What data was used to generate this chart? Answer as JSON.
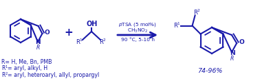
{
  "bg_color": "#ffffff",
  "blue": "#1a1aaa",
  "fig_width": 3.78,
  "fig_height": 1.21,
  "dpi": 100,
  "reaction_line1": "$p$TSA (5 mol%)",
  "reaction_line2": "CH$_3$NO$_2$",
  "reaction_line3": "90 °C, 5-10 h",
  "yield_text": "74-96%",
  "footnote1": "R= H, Me, Bn, PMB",
  "footnote2_pre": "R",
  "footnote2_sup": "1",
  "footnote2_post": "= aryl, alkyl, H",
  "footnote3_pre": "R",
  "footnote3_sup": "2",
  "footnote3_post": "= aryl, heteroaryl, allyl, propargyl"
}
